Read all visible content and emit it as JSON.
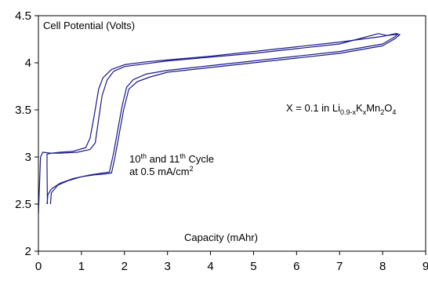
{
  "chart_data": {
    "type": "line",
    "xlim": [
      0,
      9
    ],
    "ylim": [
      2,
      4.5
    ],
    "x_ticks": [
      0,
      1,
      2,
      3,
      4,
      5,
      6,
      7,
      8,
      9
    ],
    "y_ticks": [
      2,
      2.5,
      3,
      3.5,
      4,
      4.5
    ],
    "x_tick_labels": [
      "0",
      "1",
      "2",
      "3",
      "4",
      "5",
      "6",
      "7",
      "8",
      "9"
    ],
    "y_tick_labels": [
      "2",
      "2.5",
      "3",
      "3.5",
      "4",
      "4.5"
    ],
    "grid": false,
    "legend": "none",
    "line_color": "#1a1a8c",
    "annotations": {
      "ylabel": "Cell Potential (Volts)",
      "xlabel": "Capacity (mAhr)",
      "composition": {
        "prefix": "X = 0.1 in Li",
        "sub1": "0.9-x",
        "mid1": "K",
        "sub2": "x",
        "mid2": "Mn",
        "sub3": "2",
        "mid3": "O",
        "sub4": "4"
      },
      "cycle": {
        "n1": "10",
        "sup1": "th",
        "and": " and 11",
        "sup2": "th",
        "rest": " Cycle",
        "line2": "at 0.5 mA/cm",
        "sup3": "2"
      }
    },
    "series": [
      {
        "points": [
          [
            0.2,
            2.5
          ],
          [
            0.22,
            2.6
          ],
          [
            0.3,
            2.66
          ],
          [
            0.5,
            2.72
          ],
          [
            0.8,
            2.77
          ],
          [
            1.2,
            2.81
          ],
          [
            1.5,
            2.83
          ],
          [
            1.65,
            2.84
          ],
          [
            1.75,
            3.05
          ],
          [
            1.85,
            3.3
          ],
          [
            1.95,
            3.55
          ],
          [
            2.05,
            3.74
          ],
          [
            2.2,
            3.82
          ],
          [
            2.5,
            3.88
          ],
          [
            3.0,
            3.92
          ],
          [
            4.0,
            3.97
          ],
          [
            5.0,
            4.02
          ],
          [
            6.0,
            4.07
          ],
          [
            7.0,
            4.12
          ],
          [
            8.0,
            4.2
          ],
          [
            8.3,
            4.28
          ],
          [
            8.35,
            4.31
          ],
          [
            8.3,
            4.31
          ],
          [
            8.2,
            4.3
          ],
          [
            8.0,
            4.28
          ],
          [
            7.0,
            4.22
          ],
          [
            6.0,
            4.17
          ],
          [
            5.0,
            4.12
          ],
          [
            4.0,
            4.07
          ],
          [
            3.0,
            4.03
          ],
          [
            2.5,
            4.01
          ],
          [
            2.0,
            3.98
          ],
          [
            1.7,
            3.93
          ],
          [
            1.5,
            3.84
          ],
          [
            1.4,
            3.72
          ],
          [
            1.3,
            3.45
          ],
          [
            1.2,
            3.2
          ],
          [
            1.1,
            3.1
          ],
          [
            0.8,
            3.06
          ],
          [
            0.5,
            3.05
          ],
          [
            0.3,
            3.04
          ],
          [
            0.2,
            3.03
          ],
          [
            0.2,
            2.9
          ],
          [
            0.21,
            2.5
          ]
        ]
      },
      {
        "points": [
          [
            0.28,
            2.5
          ],
          [
            0.3,
            2.62
          ],
          [
            0.45,
            2.7
          ],
          [
            0.7,
            2.75
          ],
          [
            1.0,
            2.79
          ],
          [
            1.3,
            2.81
          ],
          [
            1.55,
            2.82
          ],
          [
            1.7,
            2.83
          ],
          [
            1.78,
            3.0
          ],
          [
            1.88,
            3.25
          ],
          [
            1.98,
            3.5
          ],
          [
            2.1,
            3.72
          ],
          [
            2.3,
            3.8
          ],
          [
            2.6,
            3.85
          ],
          [
            3.0,
            3.9
          ],
          [
            4.0,
            3.95
          ],
          [
            5.0,
            4.0
          ],
          [
            6.0,
            4.05
          ],
          [
            7.0,
            4.1
          ],
          [
            8.0,
            4.18
          ],
          [
            8.3,
            4.26
          ],
          [
            8.4,
            4.3
          ],
          [
            8.3,
            4.3
          ],
          [
            8.1,
            4.29
          ],
          [
            7.9,
            4.31
          ],
          [
            7.0,
            4.2
          ],
          [
            6.0,
            4.15
          ],
          [
            5.0,
            4.1
          ],
          [
            4.0,
            4.06
          ],
          [
            3.0,
            4.02
          ],
          [
            2.5,
            3.99
          ],
          [
            2.0,
            3.96
          ],
          [
            1.75,
            3.91
          ],
          [
            1.6,
            3.82
          ],
          [
            1.48,
            3.65
          ],
          [
            1.4,
            3.4
          ],
          [
            1.32,
            3.15
          ],
          [
            1.2,
            3.08
          ],
          [
            0.9,
            3.05
          ],
          [
            0.5,
            3.04
          ],
          [
            0.3,
            3.04
          ],
          [
            0.1,
            3.05
          ],
          [
            0.05,
            3.0
          ],
          [
            0.0,
            2.4
          ]
        ]
      }
    ]
  }
}
